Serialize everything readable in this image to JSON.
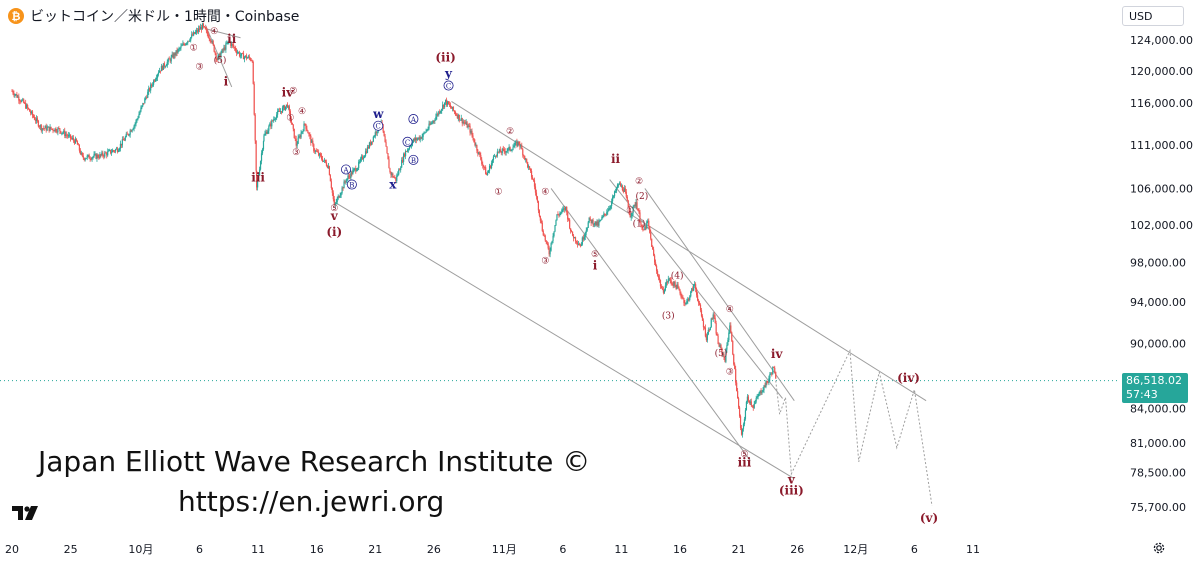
{
  "header": {
    "symbol_title": "ビットコイン／米ドル・1時間・Coinbase",
    "currency_label": "USD",
    "coin_glyph": "₿"
  },
  "watermark": {
    "line1": "Japan Elliott Wave Research Institute ©",
    "line2": "https://en.jewri.org"
  },
  "price_tag": {
    "price": "86,518.02",
    "countdown": "57:43"
  },
  "colors": {
    "up": "#26a69a",
    "down": "#ef5350",
    "wave_red": "#8b1a2b",
    "wave_blue": "#1e1e8c",
    "channel": "#9e9e9e",
    "projection": "#9e9e9e"
  },
  "chart_data": {
    "type": "candlestick",
    "title": "ビットコイン／米ドル・1時間・Coinbase",
    "y_scale": "log",
    "y_ticks": [
      124000,
      120000,
      116000,
      111000,
      106000,
      102000,
      98000,
      94000,
      90000,
      84000,
      81000,
      78500,
      75700
    ],
    "y_tick_labels": [
      "124,000.00",
      "120,000.00",
      "116,000.00",
      "111,000.00",
      "106,000.00",
      "102,000.00",
      "98,000.00",
      "94,000.00",
      "90,000.00",
      "84,000.00",
      "81,000.00",
      "78,500.00",
      "75,700.00"
    ],
    "x_ticks": [
      {
        "date": "2025-09-20",
        "label": "20"
      },
      {
        "date": "2025-09-25",
        "label": "25"
      },
      {
        "date": "2025-10-01",
        "label": "10月"
      },
      {
        "date": "2025-10-06",
        "label": "6"
      },
      {
        "date": "2025-10-11",
        "label": "11"
      },
      {
        "date": "2025-10-16",
        "label": "16"
      },
      {
        "date": "2025-10-21",
        "label": "21"
      },
      {
        "date": "2025-10-26",
        "label": "26"
      },
      {
        "date": "2025-11-01",
        "label": "11月"
      },
      {
        "date": "2025-11-06",
        "label": "6"
      },
      {
        "date": "2025-11-11",
        "label": "11"
      },
      {
        "date": "2025-11-16",
        "label": "16"
      },
      {
        "date": "2025-11-21",
        "label": "21"
      },
      {
        "date": "2025-11-26",
        "label": "26"
      },
      {
        "date": "2025-12-01",
        "label": "12月"
      },
      {
        "date": "2025-12-06",
        "label": "6"
      },
      {
        "date": "2025-12-11",
        "label": "11"
      }
    ],
    "last_price": 86518.02,
    "price_path": [
      [
        "2025-09-20T00:00",
        117500
      ],
      [
        "2025-09-21T00:00",
        116000
      ],
      [
        "2025-09-22T12:00",
        113000
      ],
      [
        "2025-09-24T00:00",
        112800
      ],
      [
        "2025-09-25T12:00",
        111300
      ],
      [
        "2025-09-26T00:00",
        109500
      ],
      [
        "2025-09-27T12:00",
        109700
      ],
      [
        "2025-09-29T00:00",
        110500
      ],
      [
        "2025-09-30T12:00",
        113500
      ],
      [
        "2025-10-01T12:00",
        117000
      ],
      [
        "2025-10-02T12:00",
        120000
      ],
      [
        "2025-10-03T12:00",
        121500
      ],
      [
        "2025-10-05T00:00",
        124000
      ],
      [
        "2025-10-06T06:00",
        125800
      ],
      [
        "2025-10-07T00:00",
        124000
      ],
      [
        "2025-10-07T12:00",
        121500
      ],
      [
        "2025-10-08T12:00",
        123800
      ],
      [
        "2025-10-09T12:00",
        122000
      ],
      [
        "2025-10-10T12:00",
        121500
      ],
      [
        "2025-10-10T21:00",
        106000
      ],
      [
        "2025-10-11T12:00",
        112000
      ],
      [
        "2025-10-12T12:00",
        114500
      ],
      [
        "2025-10-13T12:00",
        115800
      ],
      [
        "2025-10-14T06:00",
        111000
      ],
      [
        "2025-10-15T00:00",
        113500
      ],
      [
        "2025-10-15T18:00",
        110500
      ],
      [
        "2025-10-17T00:00",
        108500
      ],
      [
        "2025-10-17T12:00",
        104000
      ],
      [
        "2025-10-18T12:00",
        107000
      ],
      [
        "2025-10-19T12:00",
        108500
      ],
      [
        "2025-10-20T12:00",
        111000
      ],
      [
        "2025-10-21T12:00",
        113800
      ],
      [
        "2025-10-22T06:00",
        107800
      ],
      [
        "2025-10-22T18:00",
        107000
      ],
      [
        "2025-10-23T12:00",
        110000
      ],
      [
        "2025-10-24T06:00",
        111500
      ],
      [
        "2025-10-25T00:00",
        112000
      ],
      [
        "2025-10-26T00:00",
        114000
      ],
      [
        "2025-10-27T00:00",
        116200
      ],
      [
        "2025-10-28T00:00",
        114500
      ],
      [
        "2025-10-29T00:00",
        113000
      ],
      [
        "2025-10-30T12:00",
        107500
      ],
      [
        "2025-10-31T06:00",
        110000
      ],
      [
        "2025-11-01T12:00",
        110500
      ],
      [
        "2025-11-02T06:00",
        111300
      ],
      [
        "2025-11-03T12:00",
        106800
      ],
      [
        "2025-11-04T06:00",
        101500
      ],
      [
        "2025-11-04T20:00",
        99000
      ],
      [
        "2025-11-05T12:00",
        103000
      ],
      [
        "2025-11-06T06:00",
        103800
      ],
      [
        "2025-11-06T18:00",
        101000
      ],
      [
        "2025-11-07T12:00",
        99800
      ],
      [
        "2025-11-08T06:00",
        102500
      ],
      [
        "2025-11-09T00:00",
        102000
      ],
      [
        "2025-11-10T00:00",
        104000
      ],
      [
        "2025-11-10T18:00",
        106500
      ],
      [
        "2025-11-11T06:00",
        105800
      ],
      [
        "2025-11-11T18:00",
        103000
      ],
      [
        "2025-11-12T06:00",
        104500
      ],
      [
        "2025-11-12T20:00",
        101200
      ],
      [
        "2025-11-13T06:00",
        102300
      ],
      [
        "2025-11-13T20:00",
        98000
      ],
      [
        "2025-11-14T12:00",
        95000
      ],
      [
        "2025-11-15T00:00",
        96300
      ],
      [
        "2025-11-15T18:00",
        95500
      ],
      [
        "2025-11-16T12:00",
        93800
      ],
      [
        "2025-11-17T06:00",
        95800
      ],
      [
        "2025-11-17T18:00",
        93000
      ],
      [
        "2025-11-18T06:00",
        90500
      ],
      [
        "2025-11-18T20:00",
        92800
      ],
      [
        "2025-11-19T06:00",
        90000
      ],
      [
        "2025-11-19T20:00",
        88500
      ],
      [
        "2025-11-20T06:00",
        91800
      ],
      [
        "2025-11-20T18:00",
        86500
      ],
      [
        "2025-11-21T06:00",
        81500
      ],
      [
        "2025-11-21T18:00",
        85000
      ],
      [
        "2025-11-22T06:00",
        84200
      ],
      [
        "2025-11-22T18:00",
        85300
      ],
      [
        "2025-11-23T12:00",
        86500
      ],
      [
        "2025-11-24T00:00",
        87800
      ],
      [
        "2025-11-24T04:00",
        86518
      ]
    ],
    "projection": [
      [
        "2025-11-24T04:00",
        86518
      ],
      [
        "2025-11-24T12:00",
        83500
      ],
      [
        "2025-11-25T00:00",
        85000
      ],
      [
        "2025-11-25T12:00",
        78400
      ],
      [
        "2025-11-30T12:00",
        89300
      ],
      [
        "2025-12-01T06:00",
        79400
      ],
      [
        "2025-12-03T00:00",
        87300
      ],
      [
        "2025-12-04T12:00",
        80600
      ],
      [
        "2025-12-06T00:00",
        85700
      ],
      [
        "2025-12-07T12:00",
        75800
      ]
    ],
    "channel_lines": [
      [
        [
          "2025-10-17T12:00",
          104500
        ],
        [
          "2025-11-25T18:00",
          78000
        ]
      ],
      [
        [
          "2025-10-27T12:00",
          116200
        ],
        [
          "2025-12-07T00:00",
          84700
        ]
      ],
      [
        [
          "2025-11-05T00:00",
          106000
        ],
        [
          "2025-11-22T00:00",
          79500
        ]
      ],
      [
        [
          "2025-11-10T00:00",
          107000
        ],
        [
          "2025-11-24T18:00",
          84900
        ]
      ],
      [
        [
          "2025-11-13T00:00",
          106000
        ],
        [
          "2025-11-25T18:00",
          84700
        ]
      ],
      [
        [
          "2025-10-06T12:00",
          126000
        ],
        [
          "2025-10-08T18:00",
          118000
        ]
      ],
      [
        [
          "2025-10-06T12:00",
          125500
        ],
        [
          "2025-10-09T12:00",
          124300
        ]
      ]
    ],
    "wave_labels": [
      {
        "t": "2025-10-08T18:00",
        "p": 123600,
        "text": "ii",
        "style": "roman"
      },
      {
        "t": "2025-10-07T18:00",
        "p": 121000,
        "text": "(5)",
        "style": "circle"
      },
      {
        "t": "2025-10-08T06:00",
        "p": 118200,
        "text": "i",
        "style": "roman"
      },
      {
        "t": "2025-10-05T12:00",
        "p": 122600,
        "text": "①",
        "style": "circle"
      },
      {
        "t": "2025-10-06T00:00",
        "p": 120200,
        "text": "③",
        "style": "circle"
      },
      {
        "t": "2025-10-07T06:00",
        "p": 124800,
        "text": "④",
        "style": "circle"
      },
      {
        "t": "2025-10-11T00:00",
        "p": 106800,
        "text": "iii",
        "style": "roman"
      },
      {
        "t": "2025-10-13T12:00",
        "p": 116800,
        "text": "iv",
        "style": "roman"
      },
      {
        "t": "2025-10-14T00:00",
        "p": 117200,
        "text": "②",
        "style": "circle"
      },
      {
        "t": "2025-10-13T18:00",
        "p": 113900,
        "text": "①",
        "style": "circle"
      },
      {
        "t": "2025-10-14T18:00",
        "p": 114700,
        "text": "④",
        "style": "circle"
      },
      {
        "t": "2025-10-14T06:00",
        "p": 109800,
        "text": "③",
        "style": "circle"
      },
      {
        "t": "2025-10-17T12:00",
        "p": 103500,
        "text": "⑤",
        "style": "circle"
      },
      {
        "t": "2025-10-17T12:00",
        "p": 102500,
        "text": "v",
        "style": "roman"
      },
      {
        "t": "2025-10-17T12:00",
        "p": 100800,
        "text": "(i)",
        "style": "roman"
      },
      {
        "t": "2025-10-18T12:00",
        "p": 107800,
        "text": "A",
        "style": "circle-blue"
      },
      {
        "t": "2025-10-19T00:00",
        "p": 106100,
        "text": "B",
        "style": "circle-blue"
      },
      {
        "t": "2025-10-21T06:00",
        "p": 114200,
        "text": "w",
        "style": "blue"
      },
      {
        "t": "2025-10-21T06:00",
        "p": 112900,
        "text": "C",
        "style": "circle-blue"
      },
      {
        "t": "2025-10-22T12:00",
        "p": 106000,
        "text": "x",
        "style": "blue"
      },
      {
        "t": "2025-10-24T06:00",
        "p": 113700,
        "text": "A",
        "style": "circle-blue"
      },
      {
        "t": "2025-10-23T18:00",
        "p": 111000,
        "text": "C",
        "style": "circle-blue"
      },
      {
        "t": "2025-10-24T06:00",
        "p": 108900,
        "text": "B",
        "style": "circle-blue"
      },
      {
        "t": "2025-10-27T00:00",
        "p": 121200,
        "text": "(ii)",
        "style": "roman"
      },
      {
        "t": "2025-10-27T06:00",
        "p": 119200,
        "text": "y",
        "style": "blue"
      },
      {
        "t": "2025-10-27T06:00",
        "p": 117800,
        "text": "C",
        "style": "circle-blue"
      },
      {
        "t": "2025-10-31T12:00",
        "p": 105300,
        "text": "①",
        "style": "circle"
      },
      {
        "t": "2025-11-01T12:00",
        "p": 112300,
        "text": "②",
        "style": "circle"
      },
      {
        "t": "2025-11-04T12:00",
        "p": 105300,
        "text": "④",
        "style": "circle"
      },
      {
        "t": "2025-11-04T12:00",
        "p": 97900,
        "text": "③",
        "style": "circle"
      },
      {
        "t": "2025-11-08T18:00",
        "p": 98600,
        "text": "⑤",
        "style": "circle"
      },
      {
        "t": "2025-11-08T18:00",
        "p": 97300,
        "text": "i",
        "style": "roman"
      },
      {
        "t": "2025-11-10T12:00",
        "p": 108900,
        "text": "ii",
        "style": "roman"
      },
      {
        "t": "2025-11-12T12:00",
        "p": 106500,
        "text": "②",
        "style": "circle"
      },
      {
        "t": "2025-11-12T18:00",
        "p": 104800,
        "text": "(2)",
        "style": "small"
      },
      {
        "t": "2025-11-11T18:00",
        "p": 103300,
        "text": "①",
        "style": "circle"
      },
      {
        "t": "2025-11-12T12:00",
        "p": 101800,
        "text": "(1)",
        "style": "small"
      },
      {
        "t": "2025-11-15T18:00",
        "p": 96400,
        "text": "(4)",
        "style": "small"
      },
      {
        "t": "2025-11-15T00:00",
        "p": 92400,
        "text": "(3)",
        "style": "small"
      },
      {
        "t": "2025-11-20T06:00",
        "p": 93000,
        "text": "④",
        "style": "circle"
      },
      {
        "t": "2025-11-19T12:00",
        "p": 88800,
        "text": "(5)",
        "style": "small"
      },
      {
        "t": "2025-11-20T06:00",
        "p": 87100,
        "text": "③",
        "style": "circle"
      },
      {
        "t": "2025-11-21T12:00",
        "p": 79800,
        "text": "⑤",
        "style": "circle"
      },
      {
        "t": "2025-11-21T12:00",
        "p": 79000,
        "text": "iii",
        "style": "roman"
      },
      {
        "t": "2025-11-24T06:00",
        "p": 88600,
        "text": "iv",
        "style": "roman"
      },
      {
        "t": "2025-11-25T12:00",
        "p": 77600,
        "text": "v",
        "style": "roman"
      },
      {
        "t": "2025-11-25T12:00",
        "p": 76700,
        "text": "(iii)",
        "style": "roman"
      },
      {
        "t": "2025-12-05T12:00",
        "p": 86400,
        "text": "(iv)",
        "style": "roman"
      },
      {
        "t": "2025-12-07T06:00",
        "p": 74500,
        "text": "(v)",
        "style": "roman"
      }
    ]
  }
}
